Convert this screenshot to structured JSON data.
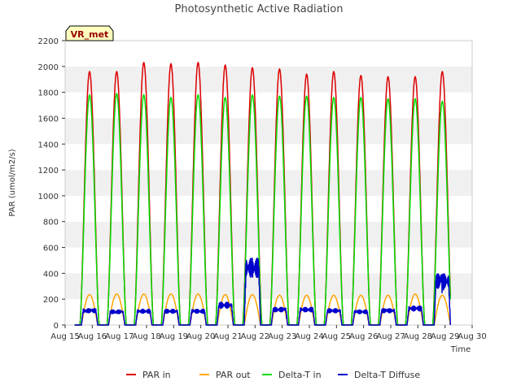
{
  "chart_data": {
    "type": "line",
    "title": "Photosynthetic Active Radiation",
    "xlabel": "Time",
    "ylabel": "PAR (umol/m2/s)",
    "ylim": [
      0,
      2200
    ],
    "xlim": [
      15,
      30
    ],
    "grid": "horizontal bands",
    "station_label": "VR_met",
    "y_ticks": [
      0,
      200,
      400,
      600,
      800,
      1000,
      1200,
      1400,
      1600,
      1800,
      2000,
      2200
    ],
    "x_tick_labels": [
      {
        "x": 15,
        "label": "Aug 15"
      },
      {
        "x": 16,
        "label": "Aug 16"
      },
      {
        "x": 17,
        "label": "Aug 17"
      },
      {
        "x": 18,
        "label": "Aug 18"
      },
      {
        "x": 19,
        "label": "Aug 19"
      },
      {
        "x": 20,
        "label": "Aug 20"
      },
      {
        "x": 21,
        "label": "Aug 21"
      },
      {
        "x": 22,
        "label": "Aug 22"
      },
      {
        "x": 23,
        "label": "Aug 23"
      },
      {
        "x": 24,
        "label": "Aug 24"
      },
      {
        "x": 25,
        "label": "Aug 25"
      },
      {
        "x": 26,
        "label": "Aug 26"
      },
      {
        "x": 27,
        "label": "Aug 27"
      },
      {
        "x": 28,
        "label": "Aug 28"
      },
      {
        "x": 29,
        "label": "Aug 29"
      },
      {
        "x": 30,
        "label": "Aug 30"
      }
    ],
    "data_start": 15.35,
    "data_end": 29.2,
    "day_centers": [
      15.9,
      16.9,
      17.9,
      18.9,
      19.9,
      20.9,
      21.9,
      22.9,
      23.9,
      24.9,
      25.9,
      26.9,
      27.9,
      28.9
    ],
    "series": [
      {
        "name": "PAR in",
        "color": "#dd0000",
        "daily_peaks": [
          1960,
          1960,
          2030,
          2020,
          2030,
          2010,
          1990,
          1980,
          1940,
          1960,
          1930,
          1920,
          1920,
          1960
        ]
      },
      {
        "name": "PAR out",
        "color": "#ffa500",
        "daily_peaks": [
          235,
          240,
          240,
          240,
          240,
          235,
          235,
          230,
          230,
          230,
          230,
          230,
          240,
          230
        ]
      },
      {
        "name": "Delta-T in",
        "color": "#00dd00",
        "daily_peaks": [
          1780,
          1790,
          1780,
          1760,
          1780,
          1760,
          1780,
          1770,
          1770,
          1760,
          1760,
          1750,
          1750,
          1730
        ]
      },
      {
        "name": "Delta-T Diffuse",
        "color": "#0000cc",
        "daily_peaks": [
          130,
          120,
          125,
          125,
          125,
          180,
          520,
          140,
          140,
          130,
          120,
          130,
          150,
          400
        ]
      }
    ]
  }
}
